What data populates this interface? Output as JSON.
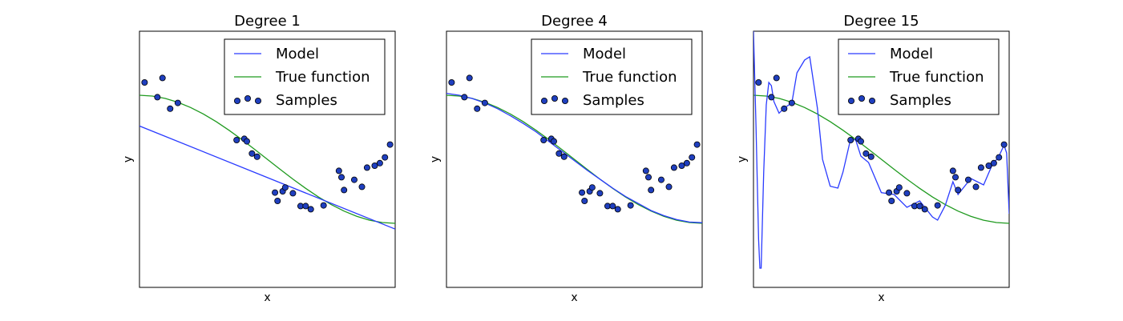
{
  "chart_data": [
    {
      "type": "line",
      "title": "Degree 1",
      "xlabel": "x",
      "ylabel": "y",
      "xlim": [
        0,
        1
      ],
      "ylim": [
        -2,
        2
      ],
      "ticks": "none",
      "grid": false,
      "legend_position": "top-right",
      "legend": [
        "Model",
        "True function",
        "Samples"
      ],
      "series": [
        {
          "name": "Model",
          "color": "#2a3bff",
          "x": [
            0,
            1
          ],
          "y": [
            0.52,
            -1.09
          ]
        },
        {
          "name": "True function",
          "color": "#1f9a1f",
          "x": [
            0,
            0.05,
            0.1,
            0.15,
            0.2,
            0.25,
            0.3,
            0.35,
            0.4,
            0.45,
            0.5,
            0.55,
            0.6,
            0.65,
            0.7,
            0.75,
            0.8,
            0.85,
            0.9,
            0.95,
            1.0
          ],
          "y": [
            1.0,
            0.988,
            0.951,
            0.891,
            0.809,
            0.707,
            0.588,
            0.454,
            0.309,
            0.156,
            0.0,
            -0.156,
            -0.309,
            -0.454,
            -0.588,
            -0.707,
            -0.809,
            -0.891,
            -0.951,
            -0.988,
            -1.0
          ]
        },
        {
          "name": "Samples",
          "marker": "circle",
          "color": "#1f3fbf",
          "x": [
            0.02,
            0.07,
            0.09,
            0.12,
            0.15,
            0.38,
            0.41,
            0.42,
            0.44,
            0.46,
            0.53,
            0.54,
            0.56,
            0.57,
            0.6,
            0.63,
            0.65,
            0.67,
            0.72,
            0.78,
            0.79,
            0.8,
            0.84,
            0.87,
            0.89,
            0.92,
            0.94,
            0.96,
            0.98
          ],
          "y": [
            1.2,
            0.97,
            1.27,
            0.79,
            0.88,
            0.3,
            0.32,
            0.28,
            0.09,
            0.04,
            -0.52,
            -0.65,
            -0.5,
            -0.44,
            -0.53,
            -0.73,
            -0.73,
            -0.78,
            -0.72,
            -0.18,
            -0.28,
            -0.48,
            -0.32,
            -0.43,
            -0.13,
            -0.1,
            -0.06,
            0.03,
            0.23
          ]
        }
      ]
    },
    {
      "type": "line",
      "title": "Degree 4",
      "xlabel": "x",
      "ylabel": "y",
      "xlim": [
        0,
        1
      ],
      "ylim": [
        -2,
        2
      ],
      "ticks": "none",
      "grid": false,
      "legend_position": "top-right",
      "legend": [
        "Model",
        "True function",
        "Samples"
      ],
      "series": [
        {
          "name": "Model",
          "color": "#2a3bff",
          "x": [
            0,
            0.05,
            0.1,
            0.15,
            0.2,
            0.25,
            0.3,
            0.35,
            0.4,
            0.45,
            0.5,
            0.55,
            0.6,
            0.65,
            0.7,
            0.75,
            0.8,
            0.85,
            0.9,
            0.95,
            1.0
          ],
          "y": [
            1.03,
            1.0,
            0.95,
            0.88,
            0.79,
            0.68,
            0.56,
            0.43,
            0.28,
            0.13,
            -0.02,
            -0.17,
            -0.31,
            -0.45,
            -0.58,
            -0.69,
            -0.8,
            -0.88,
            -0.94,
            -0.98,
            -0.99
          ]
        },
        {
          "name": "True function",
          "color": "#1f9a1f",
          "x": [
            0,
            0.05,
            0.1,
            0.15,
            0.2,
            0.25,
            0.3,
            0.35,
            0.4,
            0.45,
            0.5,
            0.55,
            0.6,
            0.65,
            0.7,
            0.75,
            0.8,
            0.85,
            0.9,
            0.95,
            1.0
          ],
          "y": [
            1.0,
            0.988,
            0.951,
            0.891,
            0.809,
            0.707,
            0.588,
            0.454,
            0.309,
            0.156,
            0.0,
            -0.156,
            -0.309,
            -0.454,
            -0.588,
            -0.707,
            -0.809,
            -0.891,
            -0.951,
            -0.988,
            -1.0
          ]
        },
        {
          "name": "Samples",
          "marker": "circle",
          "color": "#1f3fbf",
          "x": [
            0.02,
            0.07,
            0.09,
            0.12,
            0.15,
            0.38,
            0.41,
            0.42,
            0.44,
            0.46,
            0.53,
            0.54,
            0.56,
            0.57,
            0.6,
            0.63,
            0.65,
            0.67,
            0.72,
            0.78,
            0.79,
            0.8,
            0.84,
            0.87,
            0.89,
            0.92,
            0.94,
            0.96,
            0.98
          ],
          "y": [
            1.2,
            0.97,
            1.27,
            0.79,
            0.88,
            0.3,
            0.32,
            0.28,
            0.09,
            0.04,
            -0.52,
            -0.65,
            -0.5,
            -0.44,
            -0.53,
            -0.73,
            -0.73,
            -0.78,
            -0.72,
            -0.18,
            -0.28,
            -0.48,
            -0.32,
            -0.43,
            -0.13,
            -0.1,
            -0.06,
            0.03,
            0.23
          ]
        }
      ]
    },
    {
      "type": "line",
      "title": "Degree 15",
      "xlabel": "x",
      "ylabel": "y",
      "xlim": [
        0,
        1
      ],
      "ylim": [
        -2,
        2
      ],
      "ticks": "none",
      "grid": false,
      "legend_position": "top-right",
      "legend": [
        "Model",
        "True function",
        "Samples"
      ],
      "series": [
        {
          "name": "Model",
          "color": "#2a3bff",
          "x": [
            0.0,
            0.01,
            0.02,
            0.025,
            0.03,
            0.04,
            0.05,
            0.06,
            0.07,
            0.08,
            0.1,
            0.12,
            0.15,
            0.17,
            0.2,
            0.22,
            0.25,
            0.27,
            0.3,
            0.33,
            0.35,
            0.38,
            0.4,
            0.42,
            0.45,
            0.5,
            0.55,
            0.6,
            0.65,
            0.7,
            0.72,
            0.75,
            0.78,
            0.8,
            0.85,
            0.9,
            0.93,
            0.96,
            0.98,
            0.99,
            1.0
          ],
          "y": [
            2.0,
            0.5,
            -1.25,
            -1.7,
            -1.7,
            -0.2,
            0.85,
            1.2,
            1.15,
            0.9,
            0.72,
            0.8,
            0.88,
            1.35,
            1.55,
            1.6,
            0.8,
            0.0,
            -0.42,
            -0.45,
            -0.2,
            0.32,
            0.3,
            0.05,
            -0.05,
            -0.52,
            -0.55,
            -0.75,
            -0.65,
            -0.9,
            -0.95,
            -0.72,
            -0.35,
            -0.55,
            -0.3,
            -0.4,
            -0.12,
            0.05,
            0.22,
            0.1,
            -0.85
          ]
        },
        {
          "name": "True function",
          "color": "#1f9a1f",
          "x": [
            0,
            0.05,
            0.1,
            0.15,
            0.2,
            0.25,
            0.3,
            0.35,
            0.4,
            0.45,
            0.5,
            0.55,
            0.6,
            0.65,
            0.7,
            0.75,
            0.8,
            0.85,
            0.9,
            0.95,
            1.0
          ],
          "y": [
            1.0,
            0.988,
            0.951,
            0.891,
            0.809,
            0.707,
            0.588,
            0.454,
            0.309,
            0.156,
            0.0,
            -0.156,
            -0.309,
            -0.454,
            -0.588,
            -0.707,
            -0.809,
            -0.891,
            -0.951,
            -0.988,
            -1.0
          ]
        },
        {
          "name": "Samples",
          "marker": "circle",
          "color": "#1f3fbf",
          "x": [
            0.02,
            0.07,
            0.09,
            0.12,
            0.15,
            0.38,
            0.41,
            0.42,
            0.44,
            0.46,
            0.53,
            0.54,
            0.56,
            0.57,
            0.6,
            0.63,
            0.65,
            0.67,
            0.72,
            0.78,
            0.79,
            0.8,
            0.84,
            0.87,
            0.89,
            0.92,
            0.94,
            0.96,
            0.98
          ],
          "y": [
            1.2,
            0.97,
            1.27,
            0.79,
            0.88,
            0.3,
            0.32,
            0.28,
            0.09,
            0.04,
            -0.52,
            -0.65,
            -0.5,
            -0.44,
            -0.53,
            -0.73,
            -0.73,
            -0.78,
            -0.72,
            -0.18,
            -0.28,
            -0.48,
            -0.32,
            -0.43,
            -0.13,
            -0.1,
            -0.06,
            0.03,
            0.23
          ]
        }
      ]
    }
  ]
}
